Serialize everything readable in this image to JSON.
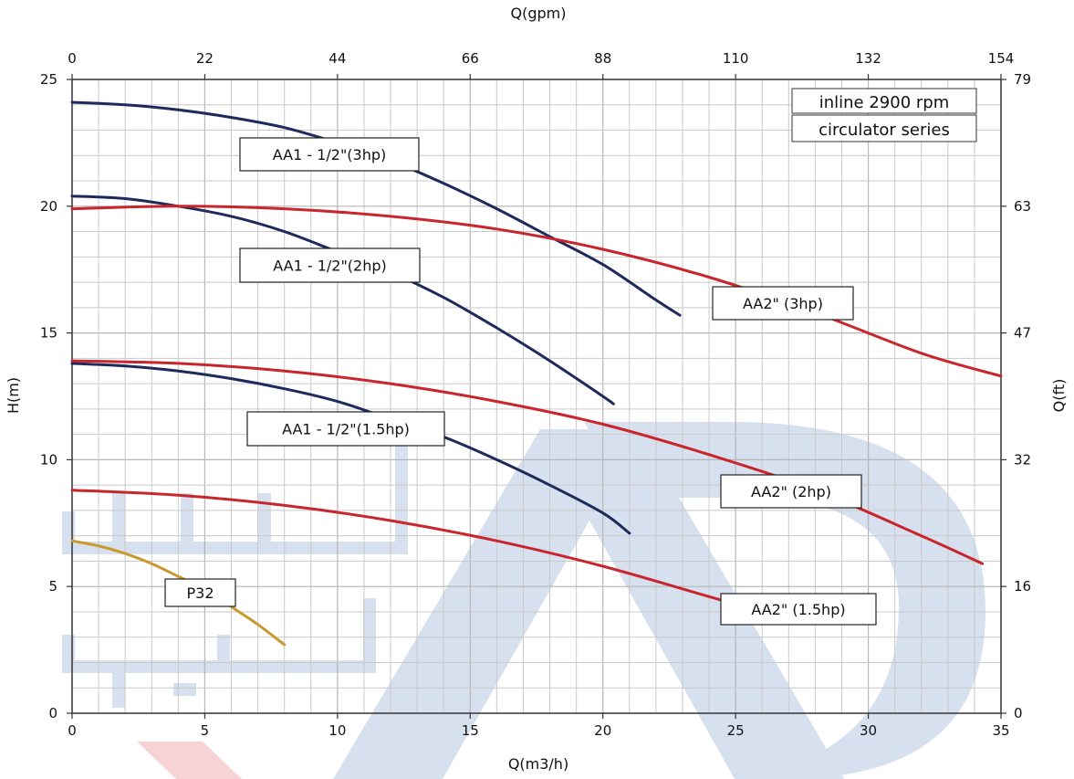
{
  "chart_data": {
    "type": "line",
    "title": "",
    "xlabel": "Q(m3/h)",
    "ylabel": "H(m)",
    "x2label": "Q(gpm)",
    "y2label": "Q(ft)",
    "xlim": [
      0,
      35
    ],
    "ylim": [
      0,
      25
    ],
    "x_ticks": [
      0,
      5,
      10,
      15,
      20,
      25,
      30,
      35
    ],
    "y_ticks": [
      0,
      5,
      10,
      15,
      20,
      25
    ],
    "x2_ticks": [
      "0",
      "22",
      "44",
      "66",
      "88",
      "110",
      "132",
      "154"
    ],
    "y2_ticks": [
      "0",
      "16",
      "32",
      "47",
      "63",
      "79"
    ],
    "grid": true,
    "legend_box": [
      "inline 2900 rpm",
      "circulator series"
    ],
    "colors": {
      "aa1": "#1f2a5c",
      "aa2": "#c8262c",
      "p32": "#c9992e",
      "watermark_blue": "#d7e0ee",
      "watermark_red": "#f7d3d6"
    },
    "series": [
      {
        "name": "AA1 - 1/2\"(3hp)",
        "color_key": "aa1",
        "x": [
          0,
          2,
          4,
          6,
          8,
          10,
          12,
          14,
          16,
          18,
          20,
          22,
          22.9
        ],
        "y": [
          24.1,
          24.0,
          23.8,
          23.5,
          23.1,
          22.5,
          21.8,
          20.9,
          19.9,
          18.8,
          17.7,
          16.3,
          15.7
        ]
      },
      {
        "name": "AA1 - 1/2\"(2hp)",
        "color_key": "aa1",
        "x": [
          0,
          2,
          4,
          6,
          8,
          10,
          12,
          14,
          16,
          18,
          20,
          20.4
        ],
        "y": [
          20.4,
          20.3,
          20.0,
          19.6,
          19.0,
          18.2,
          17.4,
          16.4,
          15.2,
          13.9,
          12.5,
          12.2
        ]
      },
      {
        "name": "AA1 - 1/2\"(1.5hp)",
        "color_key": "aa1",
        "x": [
          0,
          2,
          4,
          6,
          8,
          10,
          12,
          14,
          16,
          18,
          20,
          21
        ],
        "y": [
          13.8,
          13.7,
          13.5,
          13.2,
          12.8,
          12.3,
          11.6,
          10.9,
          10.0,
          9.0,
          7.9,
          7.1
        ]
      },
      {
        "name": "AA2\" (3hp)",
        "color_key": "aa2",
        "x": [
          0,
          4,
          8,
          12,
          16,
          20,
          24,
          28,
          32,
          35
        ],
        "y": [
          19.9,
          20.0,
          19.9,
          19.6,
          19.1,
          18.3,
          17.2,
          15.8,
          14.2,
          13.3
        ]
      },
      {
        "name": "AA2\" (2hp)",
        "color_key": "aa2",
        "x": [
          0,
          4,
          8,
          12,
          16,
          20,
          24,
          28,
          32,
          34.3
        ],
        "y": [
          13.9,
          13.8,
          13.5,
          13.0,
          12.3,
          11.4,
          10.2,
          8.8,
          7.0,
          5.9
        ]
      },
      {
        "name": "AA2\" (1.5hp)",
        "color_key": "aa2",
        "x": [
          0,
          4,
          8,
          12,
          16,
          20,
          24,
          25.4
        ],
        "y": [
          8.8,
          8.6,
          8.2,
          7.6,
          6.8,
          5.8,
          4.6,
          4.2
        ]
      },
      {
        "name": "P32",
        "color_key": "p32",
        "x": [
          0,
          1,
          2,
          3,
          4,
          5,
          6,
          7,
          8
        ],
        "y": [
          6.8,
          6.6,
          6.3,
          5.9,
          5.4,
          4.9,
          4.2,
          3.5,
          2.7
        ]
      }
    ]
  }
}
